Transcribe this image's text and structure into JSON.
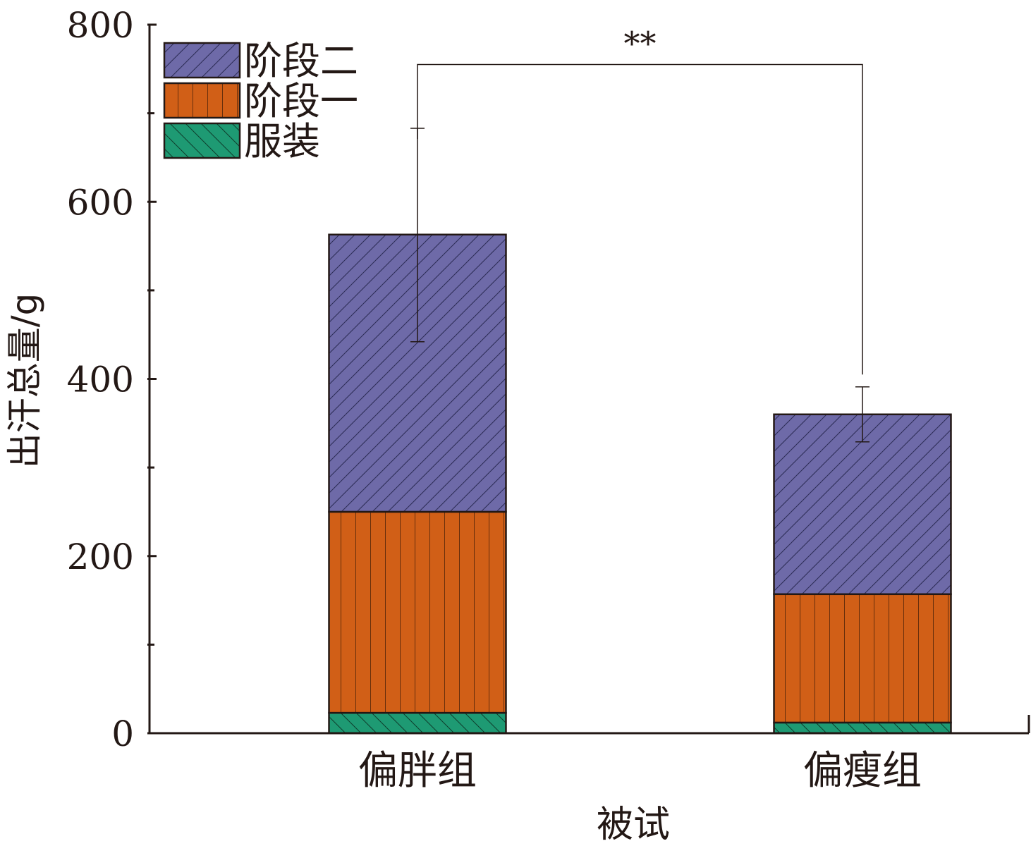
{
  "chart_data": {
    "type": "bar",
    "stacked": true,
    "categories": [
      "偏胖组",
      "偏瘦组"
    ],
    "series": [
      {
        "name": "服装",
        "values": [
          23,
          12
        ],
        "color": "#1e9a73",
        "pattern": "backslash-hatch"
      },
      {
        "name": "阶段一",
        "values": [
          227,
          145
        ],
        "color": "#d15f17",
        "pattern": "vertical-lines"
      },
      {
        "name": "阶段二",
        "values": [
          313,
          203
        ],
        "color": "#6e6aa8",
        "pattern": "slash-hatch"
      }
    ],
    "totals": [
      563,
      360
    ],
    "error_bars": [
      {
        "upper": 683,
        "lower": 442
      },
      {
        "upper": 391,
        "lower": 329
      }
    ],
    "significance": {
      "label": "**",
      "between": [
        "偏胖组",
        "偏瘦组"
      ],
      "level": 755
    },
    "xlabel": "被试",
    "ylabel": "出汗总量/g",
    "ylim": [
      0,
      800
    ],
    "yticks": [
      "0",
      "200",
      "400",
      "600",
      "800"
    ],
    "minor_yticks": [
      100,
      300,
      500,
      700
    ],
    "legend_position": "top-left",
    "grid": false
  }
}
